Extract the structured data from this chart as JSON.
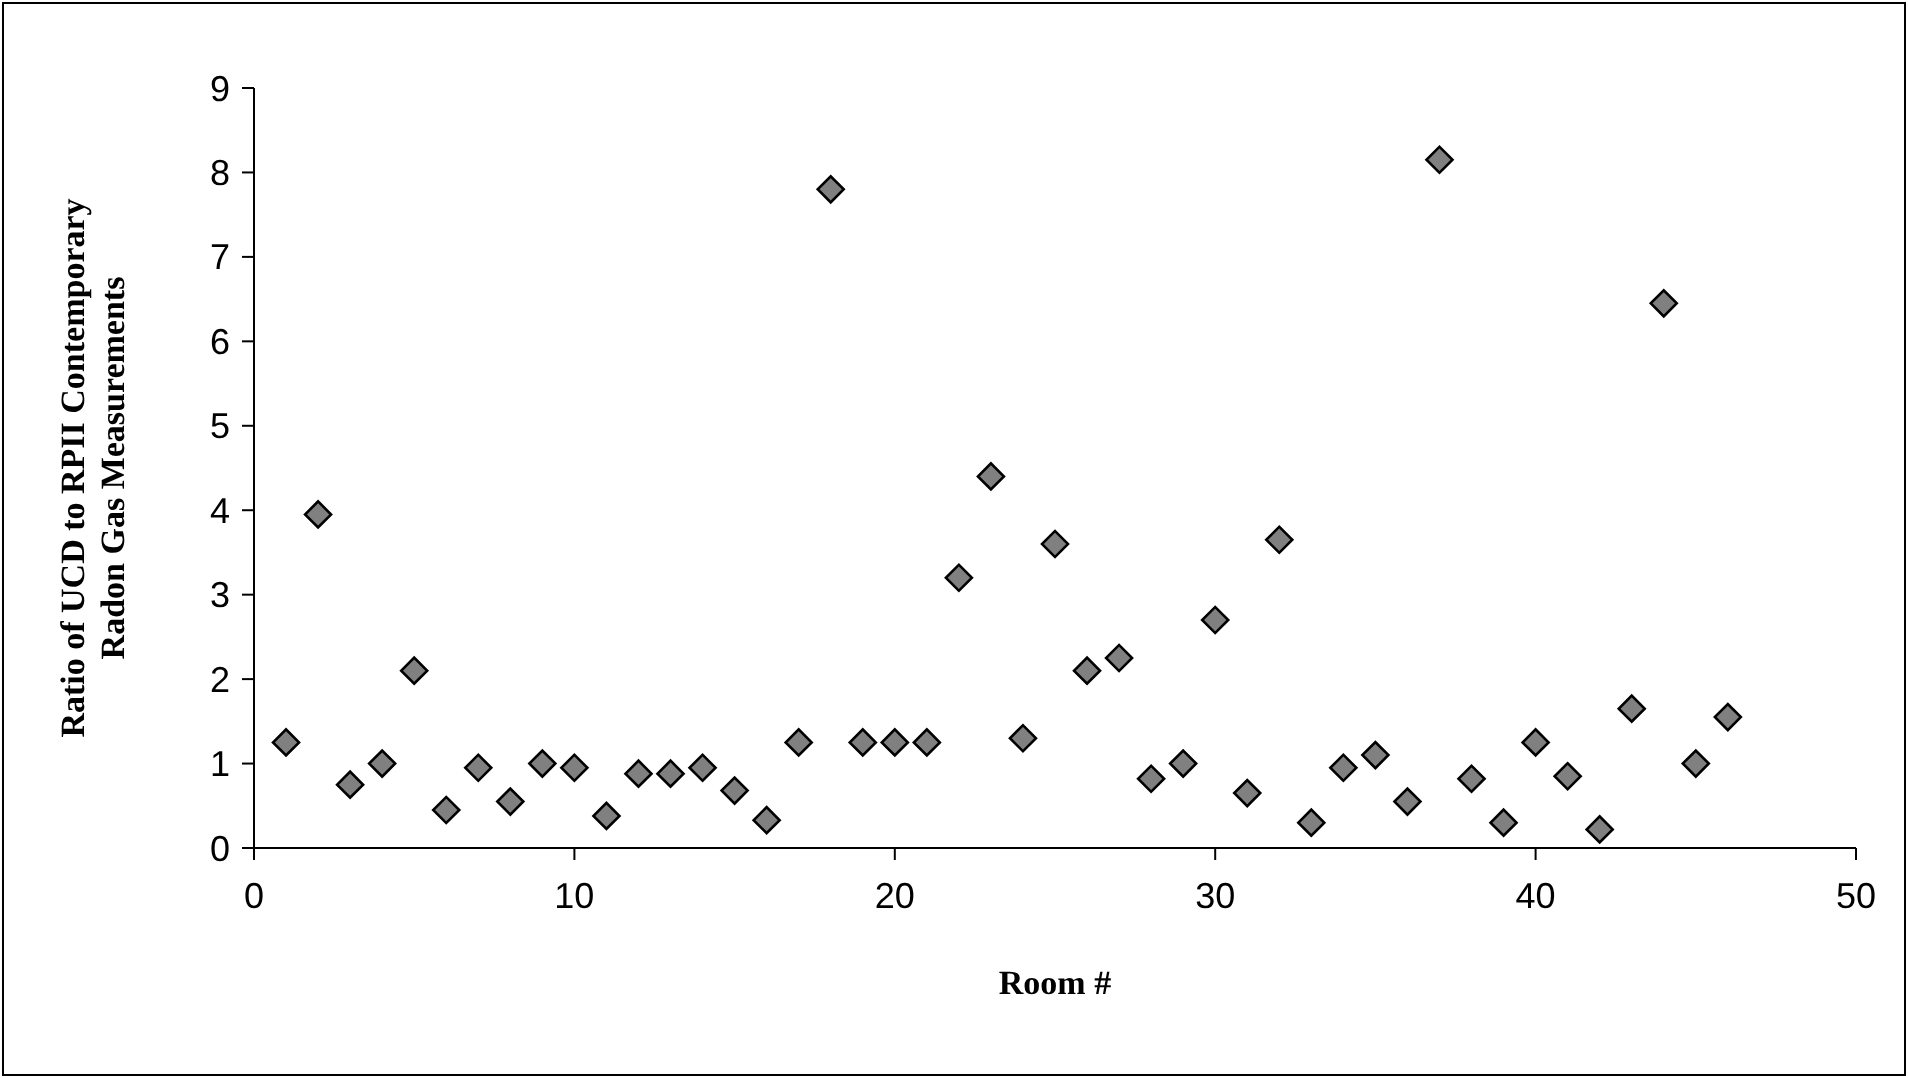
{
  "chart_data": {
    "type": "scatter",
    "xlabel": "Room #",
    "ylabel": "Ratio of UCD to RPII Contemporary Radon Gas Measurements",
    "marker": "diamond",
    "grid": false,
    "x": [
      1,
      2,
      3,
      4,
      5,
      6,
      7,
      8,
      9,
      10,
      11,
      12,
      13,
      14,
      15,
      16,
      17,
      18,
      19,
      20,
      21,
      22,
      23,
      24,
      25,
      26,
      27,
      28,
      29,
      30,
      31,
      32,
      33,
      34,
      35,
      36,
      37,
      38,
      39,
      40,
      41,
      42,
      43,
      44,
      45,
      46
    ],
    "series": [
      {
        "color": "#808080",
        "values": [
          1.25,
          3.95,
          0.75,
          1.0,
          2.1,
          0.45,
          0.95,
          0.55,
          1.0,
          0.95,
          0.38,
          0.88,
          0.88,
          0.95,
          0.68,
          0.33,
          1.25,
          7.8,
          1.25,
          1.25,
          1.25,
          3.2,
          4.4,
          1.3,
          3.6,
          2.1,
          2.25,
          0.82,
          1.0,
          2.7,
          0.65,
          3.65,
          0.3,
          0.95,
          1.1,
          0.55,
          8.15,
          0.82,
          0.3,
          1.25,
          0.85,
          0.22,
          1.65,
          6.45,
          1.0,
          1.55
        ]
      }
    ],
    "xlim": [
      0,
      50
    ],
    "xticks": [
      0,
      10,
      20,
      30,
      40,
      50
    ],
    "ylim": [
      0,
      9
    ],
    "yticks": [
      0,
      1,
      2,
      3,
      4,
      5,
      6,
      7,
      8,
      9
    ]
  }
}
